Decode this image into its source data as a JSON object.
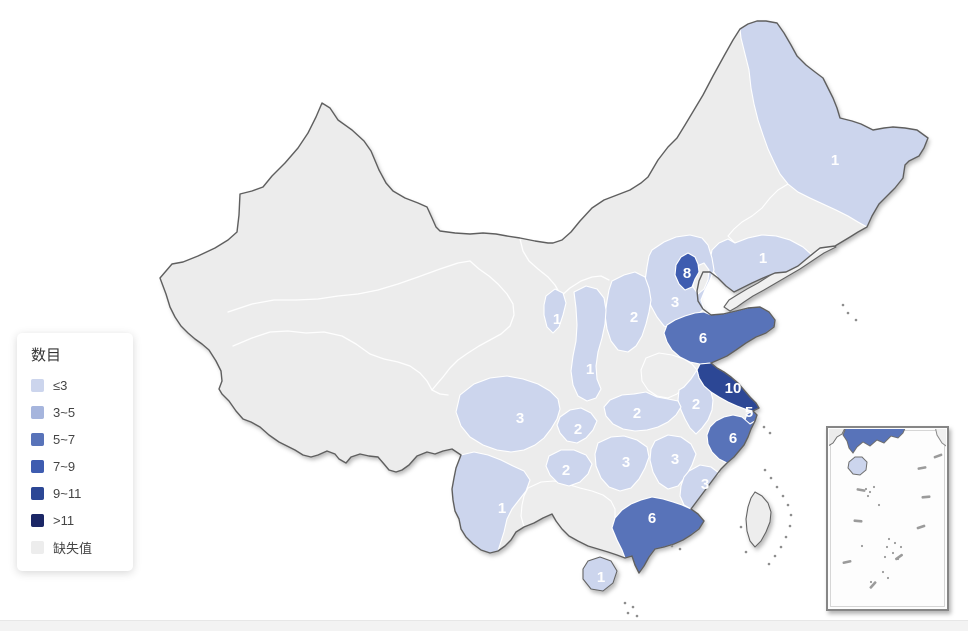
{
  "page": {
    "background": "#ffffff"
  },
  "legend": {
    "title": "数目",
    "items": [
      {
        "key": "c1",
        "label": "≤3",
        "color": "#ccd5ed"
      },
      {
        "key": "c2",
        "label": "3~5",
        "color": "#a6b5dd"
      },
      {
        "key": "c3",
        "label": "5~7",
        "color": "#5873b9"
      },
      {
        "key": "c4",
        "label": "7~9",
        "color": "#3e5cb0"
      },
      {
        "key": "c5",
        "label": "9~11",
        "color": "#2c4795"
      },
      {
        "key": "c6",
        "label": ">11",
        "color": "#1b2766"
      },
      {
        "key": "missing",
        "label": "缺失值",
        "color": "#ededed"
      }
    ]
  },
  "chart_data": {
    "type": "choropleth_map",
    "title": "",
    "legend_title": "数目",
    "legend_position": "left-middle",
    "classes": [
      {
        "key": "c1",
        "range": "≤3"
      },
      {
        "key": "c2",
        "range": "3~5"
      },
      {
        "key": "c3",
        "range": "5~7"
      },
      {
        "key": "c4",
        "range": "7~9"
      },
      {
        "key": "c5",
        "range": "9~11"
      },
      {
        "key": "c6",
        "range": ">11"
      },
      {
        "key": "missing",
        "range": "缺失值"
      }
    ],
    "regions": [
      {
        "name": "heilongjiang",
        "value": 1,
        "class": "c1"
      },
      {
        "name": "jilin",
        "value": null,
        "class": "missing"
      },
      {
        "name": "liaoning",
        "value": 1,
        "class": "c1"
      },
      {
        "name": "beijing",
        "value": 8,
        "class": "c4"
      },
      {
        "name": "tianjin",
        "value": null,
        "class": "missing"
      },
      {
        "name": "hebei",
        "value": 3,
        "class": "c1"
      },
      {
        "name": "shanxi",
        "value": 2,
        "class": "c1"
      },
      {
        "name": "shandong",
        "value": 6,
        "class": "c3"
      },
      {
        "name": "ningxia",
        "value": 1,
        "class": "c1"
      },
      {
        "name": "shaanxi",
        "value": 1,
        "class": "c1"
      },
      {
        "name": "henan",
        "value": null,
        "class": "missing"
      },
      {
        "name": "jiangsu",
        "value": 10,
        "class": "c5"
      },
      {
        "name": "anhui",
        "value": 2,
        "class": "c1"
      },
      {
        "name": "shanghai",
        "value": 5,
        "class": "c3"
      },
      {
        "name": "zhejiang",
        "value": 6,
        "class": "c3"
      },
      {
        "name": "hubei",
        "value": 2,
        "class": "c1"
      },
      {
        "name": "chongqing",
        "value": 2,
        "class": "c1"
      },
      {
        "name": "sichuan",
        "value": 3,
        "class": "c1"
      },
      {
        "name": "guizhou",
        "value": 2,
        "class": "c1"
      },
      {
        "name": "hunan",
        "value": 3,
        "class": "c1"
      },
      {
        "name": "jiangxi",
        "value": 3,
        "class": "c1"
      },
      {
        "name": "fujian",
        "value": 3,
        "class": "c1"
      },
      {
        "name": "yunnan",
        "value": 1,
        "class": "c1"
      },
      {
        "name": "guangdong",
        "value": 6,
        "class": "c3"
      },
      {
        "name": "guangxi",
        "value": null,
        "class": "missing"
      },
      {
        "name": "hainan",
        "value": 1,
        "class": "c1"
      },
      {
        "name": "xinjiang",
        "value": null,
        "class": "missing"
      },
      {
        "name": "tibet",
        "value": null,
        "class": "missing"
      },
      {
        "name": "qinghai",
        "value": null,
        "class": "missing"
      },
      {
        "name": "gansu",
        "value": null,
        "class": "missing"
      },
      {
        "name": "inner-mongolia",
        "value": null,
        "class": "missing"
      },
      {
        "name": "taiwan",
        "value": null,
        "class": "missing"
      }
    ],
    "inset": {
      "name": "south-china-sea-inset",
      "dash_count": 9
    }
  },
  "colors": {
    "land_missing": "#ececec",
    "country_border": "#5f5f5f",
    "province_border": "#ffffff",
    "island": "#8d8d8d"
  }
}
